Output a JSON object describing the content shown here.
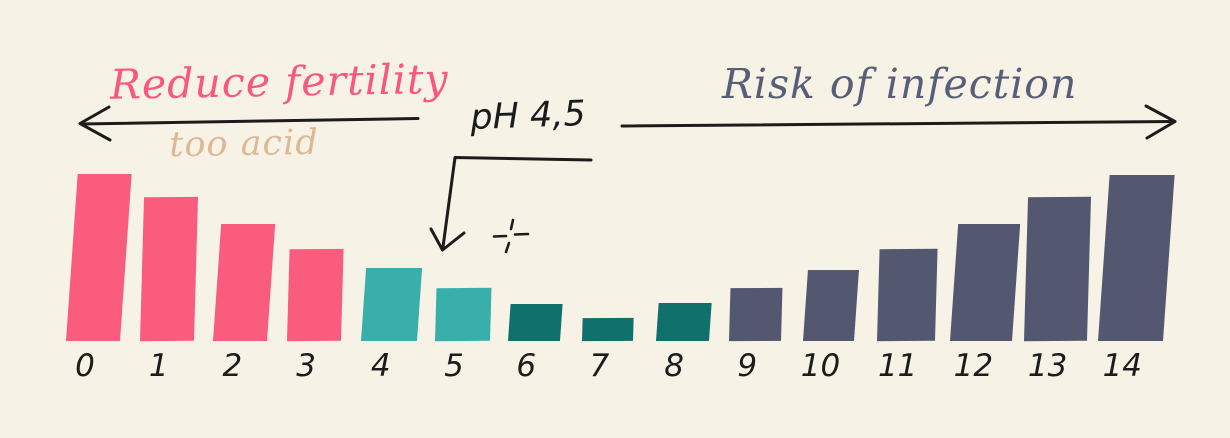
{
  "background_color": "#F6F2E5",
  "annotations": {
    "left_arrow_label": "Reduce fertility",
    "left_arrow_sublabel": "too acid",
    "right_arrow_label": "Risk of infection",
    "ph_marker_label": "pH 4,5"
  },
  "colors": {
    "acid_pink": "#FA5C7E",
    "mild_acid_teal": "#39AFAB",
    "optimal_dark_teal": "#0F706C",
    "alkaline_slate": "#535870",
    "label_pink": "#F9577C",
    "label_tan": "#DEB795",
    "label_slate": "#575E78",
    "ink_black": "#1C1C1C"
  },
  "chart_data": {
    "type": "bar",
    "title": "",
    "xlabel": "",
    "ylabel": "",
    "grid": false,
    "legend": "none",
    "categories": [
      "0",
      "1",
      "2",
      "3",
      "4",
      "5",
      "6",
      "7",
      "8",
      "9",
      "10",
      "11",
      "12",
      "13",
      "14"
    ],
    "values": [
      167,
      144,
      117,
      92,
      73,
      53,
      37,
      23,
      38,
      53,
      71,
      92,
      117,
      144,
      166
    ],
    "values_note": "relative bar heights in pixels; no y-axis shown, V-shape with minimum at pH 7",
    "bar_colors": [
      "#FA5C7E",
      "#FA5C7E",
      "#FA5C7E",
      "#FA5C7E",
      "#39AFAB",
      "#39AFAB",
      "#0F706C",
      "#0F706C",
      "#0F706C",
      "#535870",
      "#535870",
      "#535870",
      "#535870",
      "#535870",
      "#535870"
    ],
    "annotations": [
      "Reduce fertility — left-pointing arrow spanning acid side (pH 0-4)",
      "too acid — sublabel under left arrow",
      "pH 4,5 — elbow arrow pointing down between pH 4 and pH 5, with small dashed cross mark",
      "Risk of infection — right-pointing arrow spanning alkaline side (pH 6-14)"
    ]
  }
}
